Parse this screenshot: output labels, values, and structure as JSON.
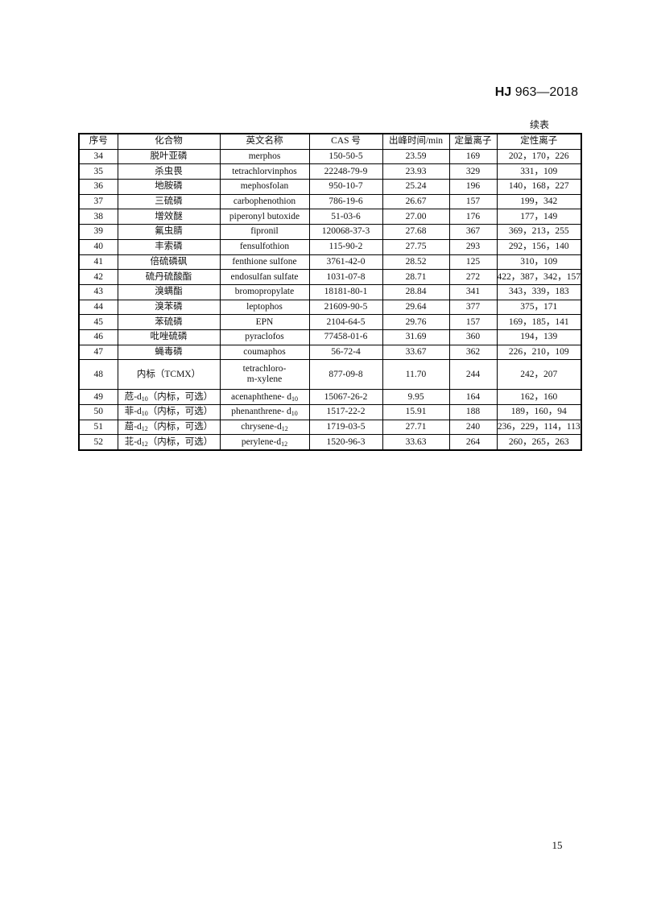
{
  "header": {
    "standard_prefix": "HJ",
    "standard_number": "963—2018"
  },
  "continued_label": "续表",
  "table": {
    "columns": [
      "序号",
      "化合物",
      "英文名称",
      "CAS 号",
      "出峰时间/min",
      "定量离子",
      "定性离子"
    ],
    "rows": [
      {
        "no": "34",
        "cn": "脱叶亚磷",
        "cn_sub": "",
        "cn_post": "",
        "en": "merphos",
        "en_sub": "",
        "cas": "150-50-5",
        "rt": "23.59",
        "quant": "169",
        "qual": "202，170，226"
      },
      {
        "no": "35",
        "cn": "杀虫畏",
        "cn_sub": "",
        "cn_post": "",
        "en": "tetrachlorvinphos",
        "en_sub": "",
        "cas": "22248-79-9",
        "rt": "23.93",
        "quant": "329",
        "qual": "331，109"
      },
      {
        "no": "36",
        "cn": "地胺磷",
        "cn_sub": "",
        "cn_post": "",
        "en": "mephosfolan",
        "en_sub": "",
        "cas": "950-10-7",
        "rt": "25.24",
        "quant": "196",
        "qual": "140，168，227"
      },
      {
        "no": "37",
        "cn": "三硫磷",
        "cn_sub": "",
        "cn_post": "",
        "en": "carbophenothion",
        "en_sub": "",
        "cas": "786-19-6",
        "rt": "26.67",
        "quant": "157",
        "qual": "199，342"
      },
      {
        "no": "38",
        "cn": "增效醚",
        "cn_sub": "",
        "cn_post": "",
        "en": "piperonyl butoxide",
        "en_sub": "",
        "cas": "51-03-6",
        "rt": "27.00",
        "quant": "176",
        "qual": "177，149"
      },
      {
        "no": "39",
        "cn": "氟虫腈",
        "cn_sub": "",
        "cn_post": "",
        "en": "fipronil",
        "en_sub": "",
        "cas": "120068-37-3",
        "rt": "27.68",
        "quant": "367",
        "qual": "369，213，255"
      },
      {
        "no": "40",
        "cn": "丰索磷",
        "cn_sub": "",
        "cn_post": "",
        "en": "fensulfothion",
        "en_sub": "",
        "cas": "115-90-2",
        "rt": "27.75",
        "quant": "293",
        "qual": "292，156，140"
      },
      {
        "no": "41",
        "cn": "倍硫磷砜",
        "cn_sub": "",
        "cn_post": "",
        "en": "fenthione sulfone",
        "en_sub": "",
        "cas": "3761-42-0",
        "rt": "28.52",
        "quant": "125",
        "qual": "310，109"
      },
      {
        "no": "42",
        "cn": "硫丹硫酸酯",
        "cn_sub": "",
        "cn_post": "",
        "en": "endosulfan sulfate",
        "en_sub": "",
        "cas": "1031-07-8",
        "rt": "28.71",
        "quant": "272",
        "qual": "422，387，342，157"
      },
      {
        "no": "43",
        "cn": "溴螨酯",
        "cn_sub": "",
        "cn_post": "",
        "en": "bromopropylate",
        "en_sub": "",
        "cas": "18181-80-1",
        "rt": "28.84",
        "quant": "341",
        "qual": "343，339，183"
      },
      {
        "no": "44",
        "cn": "溴苯磷",
        "cn_sub": "",
        "cn_post": "",
        "en": "leptophos",
        "en_sub": "",
        "cas": "21609-90-5",
        "rt": "29.64",
        "quant": "377",
        "qual": "375，171"
      },
      {
        "no": "45",
        "cn": "苯硫磷",
        "cn_sub": "",
        "cn_post": "",
        "en": "EPN",
        "en_sub": "",
        "cas": "2104-64-5",
        "rt": "29.76",
        "quant": "157",
        "qual": "169，185，141"
      },
      {
        "no": "46",
        "cn": "吡唑硫磷",
        "cn_sub": "",
        "cn_post": "",
        "en": "pyraclofos",
        "en_sub": "",
        "cas": "77458-01-6",
        "rt": "31.69",
        "quant": "360",
        "qual": "194，139"
      },
      {
        "no": "47",
        "cn": "蝇毒磷",
        "cn_sub": "",
        "cn_post": "",
        "en": "coumaphos",
        "en_sub": "",
        "cas": "56-72-4",
        "rt": "33.67",
        "quant": "362",
        "qual": "226，210，109"
      },
      {
        "no": "48",
        "cn": "内标（TCMX）",
        "cn_sub": "",
        "cn_post": "",
        "en": "tetrachloro-",
        "en2": "m-xylene",
        "en_sub": "",
        "cas": "877-09-8",
        "rt": "11.70",
        "quant": "244",
        "qual": "242，207"
      },
      {
        "no": "49",
        "cn": "苊-d",
        "cn_sub": "10",
        "cn_post": "（内标，可选）",
        "en": "acenaphthene- d",
        "en_sub": "10",
        "cas": "15067-26-2",
        "rt": "9.95",
        "quant": "164",
        "qual": "162，160"
      },
      {
        "no": "50",
        "cn": "菲-d",
        "cn_sub": "10",
        "cn_post": "（内标，可选）",
        "en": "phenanthrene- d",
        "en_sub": "10",
        "cas": "1517-22-2",
        "rt": "15.91",
        "quant": "188",
        "qual": "189，160，94"
      },
      {
        "no": "51",
        "cn": "䓛-d",
        "cn_sub": "12",
        "cn_post": "（内标，可选）",
        "en": "chrysene-d",
        "en_sub": "12",
        "cas": "1719-03-5",
        "rt": "27.71",
        "quant": "240",
        "qual": "236，229，114，113"
      },
      {
        "no": "52",
        "cn": "苝-d",
        "cn_sub": "12",
        "cn_post": "（内标，可选）",
        "en": "perylene-d",
        "en_sub": "12",
        "cas": "1520-96-3",
        "rt": "33.63",
        "quant": "264",
        "qual": "260，265，263"
      }
    ]
  },
  "page_number": "15"
}
